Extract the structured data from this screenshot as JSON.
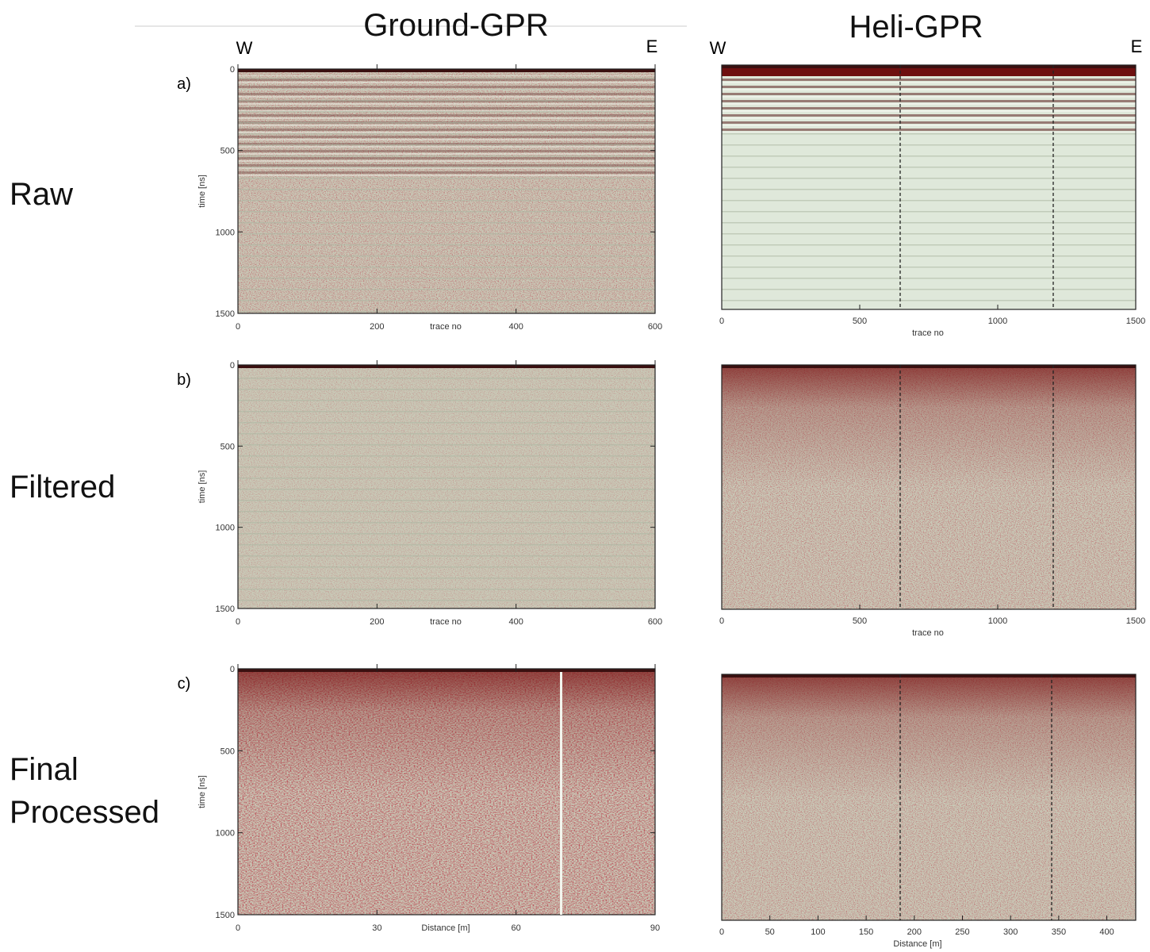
{
  "columns": [
    "Ground-GPR",
    "Heli-GPR"
  ],
  "direction": {
    "west": "W",
    "east": "E"
  },
  "rows": [
    "Raw",
    "Filtered",
    "Final Processed"
  ],
  "panel_letters": [
    "a)",
    "b)",
    "c)"
  ],
  "ground": {
    "y_label": "time [ns]",
    "ylim": [
      0,
      1500
    ],
    "yticks": [
      0,
      500,
      1000,
      1500
    ],
    "trace_label": "trace no",
    "trace_xlim": [
      0,
      600
    ],
    "trace_xticks": [
      0,
      200,
      400,
      600
    ],
    "distance_label": "Distance [m]",
    "distance_xlim": [
      0,
      90
    ],
    "distance_xticks": [
      0,
      30,
      60,
      90
    ]
  },
  "heli": {
    "trace_label": "trace no",
    "trace_xlim": [
      0,
      1500
    ],
    "trace_xticks": [
      0,
      500,
      1000,
      1500
    ],
    "distance_label": "Distance [m]",
    "distance_xlim": [
      0,
      430
    ],
    "distance_xticks": [
      0,
      50,
      100,
      150,
      200,
      250,
      300,
      350,
      400
    ]
  }
}
